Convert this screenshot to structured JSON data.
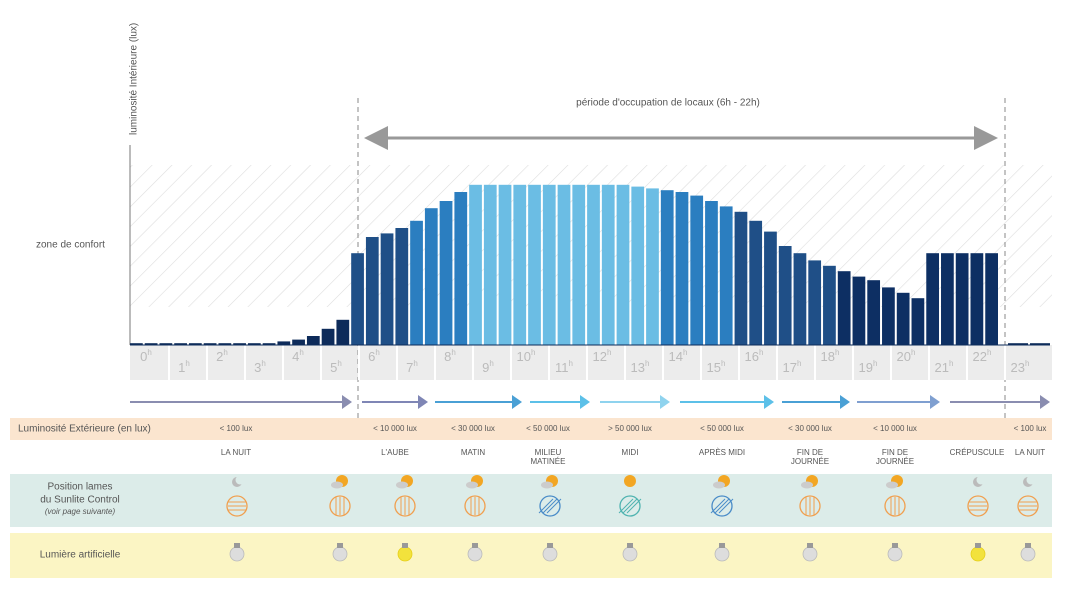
{
  "chart_data": {
    "type": "bar",
    "y_label": "luminosité Intérieure (lux)",
    "annotation": "période d'occupation de locaux (6h - 22h)",
    "zone_label": "zone de confort",
    "hours": [
      "0",
      "1",
      "2",
      "3",
      "4",
      "5",
      "6",
      "7",
      "8",
      "9",
      "10",
      "11",
      "12",
      "13",
      "14",
      "15",
      "16",
      "17",
      "18",
      "19",
      "20",
      "21",
      "22",
      "23"
    ],
    "hour_unit": "h",
    "ylim": [
      0,
      100
    ],
    "values": [
      1,
      1,
      1,
      1,
      1,
      1,
      1,
      1,
      1,
      1,
      2,
      3,
      5,
      9,
      14,
      51,
      60,
      62,
      65,
      69,
      76,
      80,
      85,
      89,
      89,
      89,
      89,
      89,
      89,
      89,
      89,
      89,
      89,
      89,
      88,
      87,
      86,
      85,
      83,
      80,
      77,
      74,
      69,
      63,
      55,
      51,
      47,
      44,
      41,
      38,
      36,
      32,
      29,
      26,
      51,
      51,
      51,
      51,
      51,
      1,
      1
    ],
    "colors": [
      "#0d2b5a",
      "#0d2b5a",
      "#0d2b5a",
      "#0d2b5a",
      "#0d2b5a",
      "#0d2b5a",
      "#0d2b5a",
      "#0d2b5a",
      "#0d2b5a",
      "#0d2b5a",
      "#0d2b5a",
      "#0d2b5a",
      "#0d2b5a",
      "#0d2b5a",
      "#0d2b5a",
      "#1f4f87",
      "#1f4f87",
      "#1f4f87",
      "#1f4f87",
      "#2b7ec0",
      "#2b7ec0",
      "#2b7ec0",
      "#2b7ec0",
      "#6bbde4",
      "#6bbde4",
      "#6bbde4",
      "#6bbde4",
      "#6bbde4",
      "#6bbde4",
      "#6bbde4",
      "#6bbde4",
      "#6bbde4",
      "#6bbde4",
      "#6bbde4",
      "#6bbde4",
      "#6bbde4",
      "#2b7ec0",
      "#2b7ec0",
      "#2b7ec0",
      "#2b7ec0",
      "#2b7ec0",
      "#1f4f87",
      "#1f4f87",
      "#1f4f87",
      "#1f4f87",
      "#1f4f87",
      "#1f4f87",
      "#1f4f87",
      "#0d2f63",
      "#0d2f63",
      "#0d2f63",
      "#0d2f63",
      "#0d2f63",
      "#0d2f63",
      "#0d2f63",
      "#0d2f63",
      "#0d2f63",
      "#0d2f63",
      "#0d2f63",
      "#0d2b5a",
      "#0d2b5a"
    ]
  },
  "rows": {
    "exterior_label": "Luminosité Extérieure (en lux)",
    "position_label": [
      "Position lames",
      "du Sunlite Control"
    ],
    "position_note": "(voir page suivante)",
    "light_label": "Lumière artificielle"
  },
  "periods": [
    {
      "lux": "< 100 lux",
      "name": [
        "LA NUIT"
      ]
    },
    {
      "lux": "< 10 000 lux",
      "name": [
        "L'AUBE"
      ]
    },
    {
      "lux": "< 30 000 lux",
      "name": [
        "MATIN"
      ]
    },
    {
      "lux": "< 50 000 lux",
      "name": [
        "MILIEU",
        "MATINÉE"
      ]
    },
    {
      "lux": "> 50 000 lux",
      "name": [
        "MIDI"
      ]
    },
    {
      "lux": "< 50 000 lux",
      "name": [
        "APRÈS MIDI"
      ]
    },
    {
      "lux": "< 30 000 lux",
      "name": [
        "FIN DE",
        "JOURNÉE"
      ]
    },
    {
      "lux": "< 10 000 lux",
      "name": [
        "FIN DE",
        "JOURNÉE"
      ]
    },
    {
      "name": [
        "CRÉPUSCULE"
      ]
    },
    {
      "lux": "< 100 lux",
      "name": [
        "LA NUIT"
      ]
    }
  ]
}
